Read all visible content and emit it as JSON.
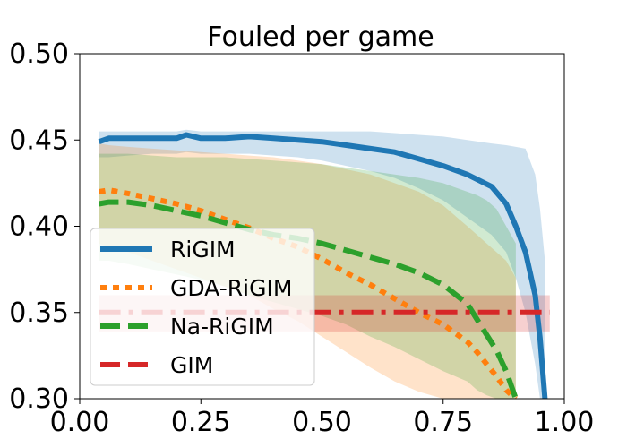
{
  "chart_data": {
    "type": "line",
    "title": "Fouled per game",
    "xlabel": "",
    "ylabel": "",
    "xlim": [
      0.0,
      1.0
    ],
    "ylim": [
      0.3,
      0.5
    ],
    "x_ticks": [
      "0.00",
      "0.25",
      "0.50",
      "0.75",
      "1.00"
    ],
    "y_ticks": [
      "0.30",
      "0.35",
      "0.40",
      "0.45",
      "0.50"
    ],
    "grid": false,
    "legend_position": "lower-left",
    "series": [
      {
        "name": "RiGIM",
        "color": "#1f77b4",
        "style": "solid",
        "x": [
          0.04,
          0.06,
          0.1,
          0.15,
          0.2,
          0.22,
          0.25,
          0.3,
          0.35,
          0.4,
          0.45,
          0.5,
          0.55,
          0.6,
          0.65,
          0.7,
          0.75,
          0.8,
          0.85,
          0.88,
          0.9,
          0.92,
          0.94,
          0.95,
          0.96
        ],
        "y": [
          0.449,
          0.451,
          0.451,
          0.451,
          0.451,
          0.453,
          0.451,
          0.451,
          0.452,
          0.451,
          0.45,
          0.449,
          0.447,
          0.445,
          0.443,
          0.439,
          0.435,
          0.43,
          0.423,
          0.413,
          0.4,
          0.385,
          0.36,
          0.335,
          0.3
        ],
        "band_upper": [
          0.455,
          0.455,
          0.455,
          0.455,
          0.455,
          0.456,
          0.455,
          0.455,
          0.455,
          0.455,
          0.455,
          0.455,
          0.455,
          0.455,
          0.454,
          0.453,
          0.452,
          0.45,
          0.448,
          0.447,
          0.446,
          0.445,
          0.43,
          0.41,
          0.38
        ],
        "band_lower": [
          0.44,
          0.44,
          0.441,
          0.442,
          0.442,
          0.443,
          0.442,
          0.442,
          0.442,
          0.441,
          0.44,
          0.438,
          0.435,
          0.432,
          0.428,
          0.422,
          0.415,
          0.405,
          0.395,
          0.385,
          0.37,
          0.35,
          0.32,
          0.3,
          0.3
        ]
      },
      {
        "name": "GDA-RiGIM",
        "color": "#ff7f0e",
        "style": "dotted",
        "x": [
          0.04,
          0.06,
          0.1,
          0.15,
          0.2,
          0.25,
          0.3,
          0.35,
          0.4,
          0.45,
          0.5,
          0.55,
          0.6,
          0.65,
          0.7,
          0.75,
          0.8,
          0.82,
          0.84,
          0.86,
          0.88,
          0.9
        ],
        "y": [
          0.42,
          0.421,
          0.419,
          0.416,
          0.413,
          0.409,
          0.404,
          0.399,
          0.393,
          0.388,
          0.381,
          0.373,
          0.366,
          0.358,
          0.35,
          0.343,
          0.333,
          0.327,
          0.32,
          0.313,
          0.305,
          0.3
        ],
        "band_upper": [
          0.448,
          0.447,
          0.446,
          0.445,
          0.444,
          0.443,
          0.442,
          0.441,
          0.44,
          0.438,
          0.436,
          0.433,
          0.43,
          0.425,
          0.42,
          0.412,
          0.4,
          0.395,
          0.39,
          0.385,
          0.38,
          0.37
        ],
        "band_lower": [
          0.39,
          0.388,
          0.385,
          0.38,
          0.375,
          0.37,
          0.365,
          0.36,
          0.352,
          0.345,
          0.336,
          0.327,
          0.318,
          0.31,
          0.304,
          0.3,
          0.3,
          0.3,
          0.3,
          0.3,
          0.3,
          0.3
        ]
      },
      {
        "name": "Na-RiGIM",
        "color": "#2ca02c",
        "style": "dashed",
        "x": [
          0.04,
          0.06,
          0.1,
          0.15,
          0.2,
          0.25,
          0.3,
          0.35,
          0.4,
          0.45,
          0.5,
          0.55,
          0.6,
          0.65,
          0.7,
          0.75,
          0.8,
          0.82,
          0.84,
          0.86,
          0.88,
          0.9
        ],
        "y": [
          0.413,
          0.414,
          0.414,
          0.412,
          0.409,
          0.406,
          0.402,
          0.398,
          0.395,
          0.393,
          0.39,
          0.386,
          0.382,
          0.378,
          0.373,
          0.366,
          0.355,
          0.346,
          0.337,
          0.328,
          0.316,
          0.3
        ],
        "band_upper": [
          0.442,
          0.442,
          0.442,
          0.441,
          0.44,
          0.44,
          0.44,
          0.439,
          0.438,
          0.437,
          0.436,
          0.434,
          0.432,
          0.43,
          0.428,
          0.425,
          0.42,
          0.418,
          0.415,
          0.41,
          0.4,
          0.39
        ],
        "band_lower": [
          0.38,
          0.38,
          0.378,
          0.375,
          0.372,
          0.369,
          0.365,
          0.36,
          0.356,
          0.352,
          0.348,
          0.343,
          0.336,
          0.33,
          0.323,
          0.316,
          0.31,
          0.305,
          0.302,
          0.3,
          0.3,
          0.3
        ]
      },
      {
        "name": "GIM",
        "color": "#d62728",
        "style": "dashdot",
        "x": [
          0.04,
          0.97
        ],
        "y": [
          0.35,
          0.35
        ],
        "band_upper": [
          0.36,
          0.36
        ],
        "band_lower": [
          0.339,
          0.339
        ]
      }
    ]
  }
}
